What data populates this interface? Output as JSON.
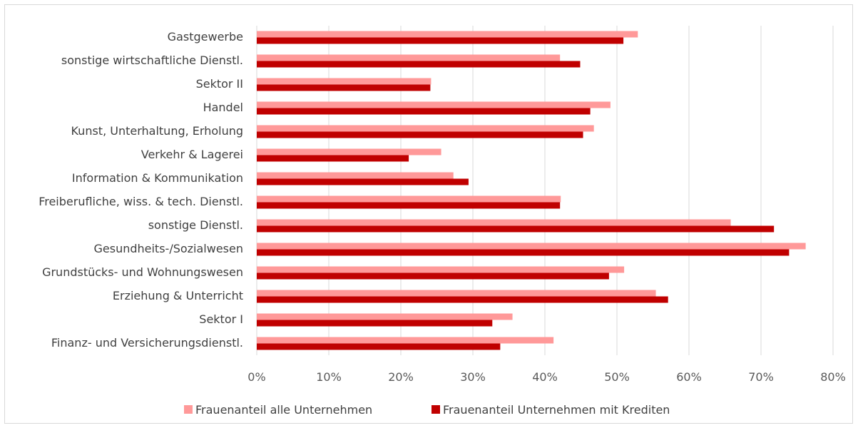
{
  "chart_data": {
    "type": "bar",
    "orientation": "horizontal",
    "categories": [
      "Gastgewerbe",
      "sonstige wirtschaftliche Dienstl.",
      "Sektor II",
      "Handel",
      "Kunst, Unterhaltung, Erholung",
      "Verkehr & Lagerei",
      "Information & Kommunikation",
      "Freiberufliche, wiss. & tech. Dienstl.",
      "sonstige Dienstl.",
      "Gesundheits-/Sozialwesen",
      "Grundstücks- und Wohnungswesen",
      "Erziehung & Unterricht",
      "Sektor I",
      "Finanz- und Versicherungsdienstl."
    ],
    "series": [
      {
        "name": "Frauenanteil alle Unternehmen",
        "color": "#ff9999",
        "values": [
          0.529,
          0.421,
          0.242,
          0.491,
          0.468,
          0.256,
          0.273,
          0.422,
          0.658,
          0.762,
          0.51,
          0.554,
          0.355,
          0.412
        ]
      },
      {
        "name": "Frauenanteil Unternehmen mit Krediten",
        "color": "#c00000",
        "values": [
          0.509,
          0.449,
          0.241,
          0.463,
          0.453,
          0.211,
          0.294,
          0.421,
          0.718,
          0.739,
          0.489,
          0.571,
          0.327,
          0.338
        ]
      }
    ],
    "xlim": [
      0,
      0.8
    ],
    "ticks": [
      "0%",
      "10%",
      "20%",
      "30%",
      "40%",
      "50%",
      "60%",
      "70%",
      "80%"
    ],
    "grid": true,
    "legend_position": "bottom"
  }
}
